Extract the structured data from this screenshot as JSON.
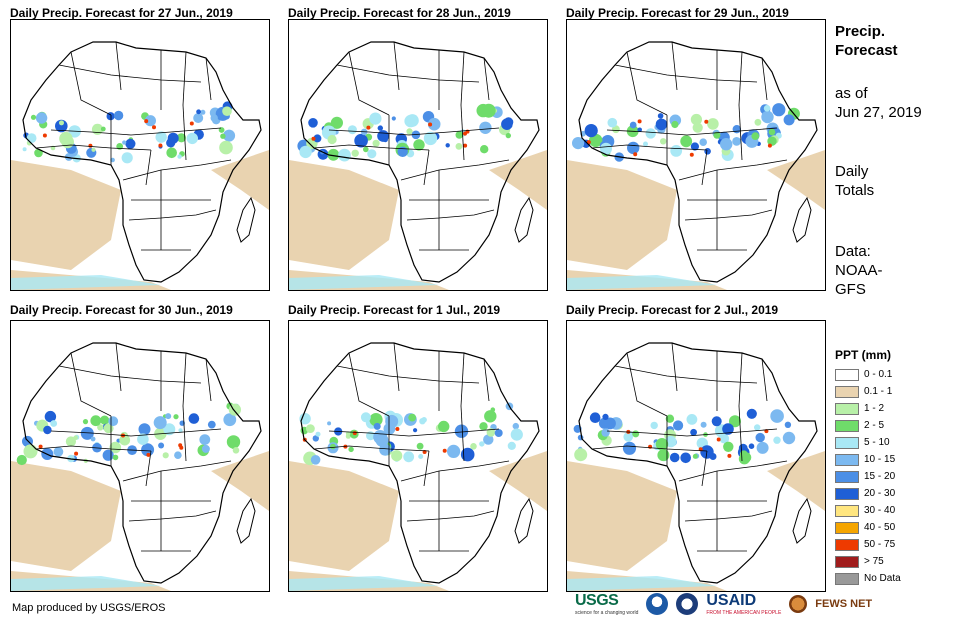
{
  "panels": [
    {
      "title": "Daily Precip. Forecast for 27 Jun., 2019"
    },
    {
      "title": "Daily Precip. Forecast for 28 Jun., 2019"
    },
    {
      "title": "Daily Precip. Forecast for 29 Jun., 2019"
    },
    {
      "title": "Daily Precip. Forecast for 30 Jun., 2019"
    },
    {
      "title": "Daily Precip. Forecast for 1 Jul., 2019"
    },
    {
      "title": "Daily Precip. Forecast for 2 Jul., 2019"
    }
  ],
  "side": {
    "heading_line1": "Precip.",
    "heading_line2": "Forecast",
    "asof_line1": "as of",
    "asof_line2": "Jun 27, 2019",
    "totals_line1": "Daily",
    "totals_line2": "Totals",
    "data_line1": "Data:",
    "data_line2": "NOAA-",
    "data_line3": "GFS"
  },
  "legend": {
    "title": "PPT (mm)",
    "items": [
      {
        "label": "0 - 0.1",
        "color": "#ffffff"
      },
      {
        "label": "0.1 - 1",
        "color": "#e9d3b0"
      },
      {
        "label": "1 - 2",
        "color": "#b8f0a8"
      },
      {
        "label": "2 - 5",
        "color": "#6fdc6a"
      },
      {
        "label": "5 - 10",
        "color": "#a9e8f5"
      },
      {
        "label": "10 - 15",
        "color": "#7cb9f0"
      },
      {
        "label": "15 - 20",
        "color": "#4c8fe6"
      },
      {
        "label": "20 - 30",
        "color": "#1f5fd6"
      },
      {
        "label": "30 - 40",
        "color": "#ffe680"
      },
      {
        "label": "40 - 50",
        "color": "#f5a500"
      },
      {
        "label": "50 - 75",
        "color": "#ee3a00"
      },
      {
        "label": "> 75",
        "color": "#a01c1c"
      },
      {
        "label": "No Data",
        "color": "#999999"
      }
    ]
  },
  "credit": "Map produced by USGS/EROS",
  "logos": {
    "usgs": "USGS",
    "usgs_tagline": "science for a changing world",
    "usaid": "USAID",
    "usaid_tagline": "FROM THE AMERICAN PEOPLE",
    "fews": "FEWS NET"
  }
}
